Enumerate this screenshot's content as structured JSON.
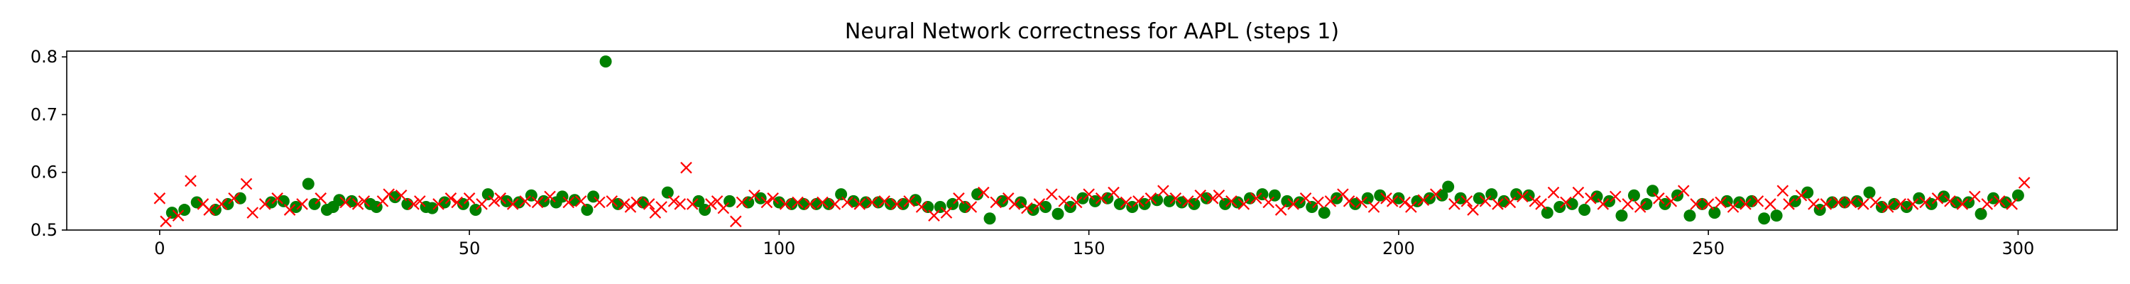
{
  "chart_data": {
    "type": "scatter",
    "title": "Neural Network correctness for AAPL (steps 1)",
    "xlabel": "",
    "ylabel": "",
    "xlim": [
      -15,
      316
    ],
    "ylim": [
      0.5,
      0.81
    ],
    "xticks": [
      0,
      50,
      100,
      150,
      200,
      250,
      300
    ],
    "yticks": [
      0.5,
      0.6,
      0.7,
      0.8
    ],
    "grid": false,
    "series": [
      {
        "marker": "circle",
        "color": "#008000",
        "points": [
          [
            2,
            0.53
          ],
          [
            4,
            0.535
          ],
          [
            6,
            0.548
          ],
          [
            9,
            0.535
          ],
          [
            11,
            0.545
          ],
          [
            13,
            0.555
          ],
          [
            18,
            0.548
          ],
          [
            20,
            0.55
          ],
          [
            22,
            0.54
          ],
          [
            24,
            0.58
          ],
          [
            25,
            0.545
          ],
          [
            27,
            0.535
          ],
          [
            28,
            0.54
          ],
          [
            29,
            0.552
          ],
          [
            31,
            0.55
          ],
          [
            34,
            0.545
          ],
          [
            35,
            0.54
          ],
          [
            38,
            0.557
          ],
          [
            40,
            0.545
          ],
          [
            43,
            0.54
          ],
          [
            44,
            0.538
          ],
          [
            46,
            0.548
          ],
          [
            49,
            0.545
          ],
          [
            51,
            0.535
          ],
          [
            53,
            0.562
          ],
          [
            56,
            0.55
          ],
          [
            58,
            0.548
          ],
          [
            60,
            0.56
          ],
          [
            62,
            0.55
          ],
          [
            64,
            0.548
          ],
          [
            65,
            0.558
          ],
          [
            67,
            0.552
          ],
          [
            69,
            0.535
          ],
          [
            70,
            0.558
          ],
          [
            72,
            0.792
          ],
          [
            74,
            0.545
          ],
          [
            78,
            0.548
          ],
          [
            82,
            0.565
          ],
          [
            87,
            0.55
          ],
          [
            88,
            0.535
          ],
          [
            92,
            0.55
          ],
          [
            95,
            0.548
          ],
          [
            97,
            0.555
          ],
          [
            100,
            0.548
          ],
          [
            102,
            0.545
          ],
          [
            104,
            0.545
          ],
          [
            106,
            0.545
          ],
          [
            108,
            0.545
          ],
          [
            110,
            0.562
          ],
          [
            112,
            0.55
          ],
          [
            114,
            0.548
          ],
          [
            116,
            0.548
          ],
          [
            118,
            0.545
          ],
          [
            120,
            0.545
          ],
          [
            122,
            0.552
          ],
          [
            124,
            0.54
          ],
          [
            126,
            0.54
          ],
          [
            128,
            0.545
          ],
          [
            130,
            0.54
          ],
          [
            132,
            0.562
          ],
          [
            134,
            0.52
          ],
          [
            136,
            0.55
          ],
          [
            139,
            0.548
          ],
          [
            141,
            0.535
          ],
          [
            143,
            0.54
          ],
          [
            145,
            0.528
          ],
          [
            147,
            0.54
          ],
          [
            149,
            0.555
          ],
          [
            151,
            0.55
          ],
          [
            153,
            0.555
          ],
          [
            155,
            0.545
          ],
          [
            157,
            0.54
          ],
          [
            159,
            0.545
          ],
          [
            161,
            0.552
          ],
          [
            163,
            0.55
          ],
          [
            165,
            0.548
          ],
          [
            167,
            0.545
          ],
          [
            169,
            0.555
          ],
          [
            172,
            0.545
          ],
          [
            174,
            0.548
          ],
          [
            176,
            0.555
          ],
          [
            178,
            0.562
          ],
          [
            180,
            0.56
          ],
          [
            182,
            0.55
          ],
          [
            184,
            0.548
          ],
          [
            186,
            0.54
          ],
          [
            188,
            0.53
          ],
          [
            190,
            0.555
          ],
          [
            193,
            0.545
          ],
          [
            195,
            0.555
          ],
          [
            197,
            0.56
          ],
          [
            200,
            0.555
          ],
          [
            203,
            0.55
          ],
          [
            205,
            0.555
          ],
          [
            207,
            0.56
          ],
          [
            208,
            0.575
          ],
          [
            210,
            0.555
          ],
          [
            213,
            0.555
          ],
          [
            215,
            0.562
          ],
          [
            217,
            0.55
          ],
          [
            219,
            0.562
          ],
          [
            221,
            0.56
          ],
          [
            224,
            0.53
          ],
          [
            226,
            0.54
          ],
          [
            228,
            0.545
          ],
          [
            230,
            0.535
          ],
          [
            232,
            0.558
          ],
          [
            234,
            0.55
          ],
          [
            236,
            0.525
          ],
          [
            238,
            0.56
          ],
          [
            240,
            0.545
          ],
          [
            241,
            0.568
          ],
          [
            243,
            0.545
          ],
          [
            245,
            0.56
          ],
          [
            247,
            0.525
          ],
          [
            249,
            0.545
          ],
          [
            251,
            0.53
          ],
          [
            253,
            0.55
          ],
          [
            255,
            0.548
          ],
          [
            257,
            0.55
          ],
          [
            259,
            0.52
          ],
          [
            261,
            0.525
          ],
          [
            264,
            0.55
          ],
          [
            266,
            0.565
          ],
          [
            268,
            0.535
          ],
          [
            270,
            0.548
          ],
          [
            272,
            0.548
          ],
          [
            274,
            0.55
          ],
          [
            276,
            0.565
          ],
          [
            278,
            0.54
          ],
          [
            280,
            0.545
          ],
          [
            282,
            0.54
          ],
          [
            284,
            0.555
          ],
          [
            286,
            0.545
          ],
          [
            288,
            0.558
          ],
          [
            290,
            0.548
          ],
          [
            292,
            0.548
          ],
          [
            294,
            0.528
          ],
          [
            296,
            0.555
          ],
          [
            298,
            0.548
          ],
          [
            300,
            0.56
          ]
        ]
      },
      {
        "marker": "x",
        "color": "#ff0000",
        "points": [
          [
            0,
            0.555
          ],
          [
            1,
            0.515
          ],
          [
            3,
            0.525
          ],
          [
            5,
            0.585
          ],
          [
            7,
            0.545
          ],
          [
            8,
            0.535
          ],
          [
            10,
            0.545
          ],
          [
            12,
            0.555
          ],
          [
            14,
            0.58
          ],
          [
            15,
            0.53
          ],
          [
            17,
            0.545
          ],
          [
            19,
            0.555
          ],
          [
            21,
            0.535
          ],
          [
            23,
            0.545
          ],
          [
            26,
            0.555
          ],
          [
            30,
            0.548
          ],
          [
            32,
            0.545
          ],
          [
            33,
            0.55
          ],
          [
            36,
            0.55
          ],
          [
            37,
            0.562
          ],
          [
            39,
            0.56
          ],
          [
            41,
            0.545
          ],
          [
            42,
            0.55
          ],
          [
            45,
            0.545
          ],
          [
            47,
            0.555
          ],
          [
            48,
            0.548
          ],
          [
            50,
            0.555
          ],
          [
            52,
            0.545
          ],
          [
            54,
            0.55
          ],
          [
            55,
            0.555
          ],
          [
            57,
            0.545
          ],
          [
            59,
            0.55
          ],
          [
            61,
            0.548
          ],
          [
            63,
            0.558
          ],
          [
            66,
            0.548
          ],
          [
            68,
            0.55
          ],
          [
            71,
            0.548
          ],
          [
            73,
            0.55
          ],
          [
            75,
            0.545
          ],
          [
            76,
            0.54
          ],
          [
            77,
            0.548
          ],
          [
            79,
            0.545
          ],
          [
            80,
            0.53
          ],
          [
            81,
            0.54
          ],
          [
            83,
            0.55
          ],
          [
            84,
            0.545
          ],
          [
            85,
            0.608
          ],
          [
            86,
            0.545
          ],
          [
            89,
            0.545
          ],
          [
            90,
            0.55
          ],
          [
            91,
            0.538
          ],
          [
            93,
            0.515
          ],
          [
            94,
            0.548
          ],
          [
            96,
            0.56
          ],
          [
            98,
            0.548
          ],
          [
            99,
            0.555
          ],
          [
            101,
            0.545
          ],
          [
            103,
            0.548
          ],
          [
            105,
            0.545
          ],
          [
            107,
            0.548
          ],
          [
            109,
            0.545
          ],
          [
            111,
            0.548
          ],
          [
            113,
            0.545
          ],
          [
            115,
            0.548
          ],
          [
            117,
            0.55
          ],
          [
            119,
            0.545
          ],
          [
            121,
            0.55
          ],
          [
            123,
            0.54
          ],
          [
            125,
            0.525
          ],
          [
            127,
            0.53
          ],
          [
            129,
            0.555
          ],
          [
            131,
            0.54
          ],
          [
            133,
            0.565
          ],
          [
            135,
            0.548
          ],
          [
            137,
            0.555
          ],
          [
            138,
            0.545
          ],
          [
            140,
            0.538
          ],
          [
            142,
            0.545
          ],
          [
            144,
            0.562
          ],
          [
            146,
            0.55
          ],
          [
            148,
            0.548
          ],
          [
            150,
            0.562
          ],
          [
            152,
            0.555
          ],
          [
            154,
            0.565
          ],
          [
            156,
            0.548
          ],
          [
            158,
            0.55
          ],
          [
            160,
            0.555
          ],
          [
            162,
            0.568
          ],
          [
            164,
            0.555
          ],
          [
            166,
            0.55
          ],
          [
            168,
            0.56
          ],
          [
            170,
            0.555
          ],
          [
            171,
            0.56
          ],
          [
            173,
            0.55
          ],
          [
            175,
            0.545
          ],
          [
            177,
            0.555
          ],
          [
            179,
            0.548
          ],
          [
            181,
            0.535
          ],
          [
            183,
            0.545
          ],
          [
            185,
            0.555
          ],
          [
            187,
            0.548
          ],
          [
            189,
            0.55
          ],
          [
            191,
            0.562
          ],
          [
            192,
            0.55
          ],
          [
            194,
            0.548
          ],
          [
            196,
            0.54
          ],
          [
            198,
            0.555
          ],
          [
            199,
            0.55
          ],
          [
            201,
            0.548
          ],
          [
            202,
            0.54
          ],
          [
            204,
            0.552
          ],
          [
            206,
            0.562
          ],
          [
            209,
            0.545
          ],
          [
            211,
            0.55
          ],
          [
            212,
            0.535
          ],
          [
            214,
            0.55
          ],
          [
            216,
            0.545
          ],
          [
            218,
            0.548
          ],
          [
            220,
            0.558
          ],
          [
            222,
            0.55
          ],
          [
            223,
            0.545
          ],
          [
            225,
            0.565
          ],
          [
            227,
            0.548
          ],
          [
            229,
            0.565
          ],
          [
            231,
            0.555
          ],
          [
            233,
            0.545
          ],
          [
            235,
            0.558
          ],
          [
            237,
            0.545
          ],
          [
            239,
            0.54
          ],
          [
            242,
            0.555
          ],
          [
            244,
            0.55
          ],
          [
            246,
            0.568
          ],
          [
            248,
            0.545
          ],
          [
            250,
            0.545
          ],
          [
            252,
            0.548
          ],
          [
            254,
            0.54
          ],
          [
            256,
            0.545
          ],
          [
            258,
            0.55
          ],
          [
            260,
            0.545
          ],
          [
            262,
            0.568
          ],
          [
            263,
            0.545
          ],
          [
            265,
            0.56
          ],
          [
            267,
            0.545
          ],
          [
            269,
            0.545
          ],
          [
            271,
            0.548
          ],
          [
            273,
            0.548
          ],
          [
            275,
            0.545
          ],
          [
            277,
            0.548
          ],
          [
            279,
            0.54
          ],
          [
            281,
            0.545
          ],
          [
            283,
            0.545
          ],
          [
            285,
            0.548
          ],
          [
            287,
            0.555
          ],
          [
            289,
            0.55
          ],
          [
            291,
            0.545
          ],
          [
            293,
            0.558
          ],
          [
            295,
            0.545
          ],
          [
            297,
            0.55
          ],
          [
            299,
            0.545
          ],
          [
            301,
            0.582
          ]
        ]
      }
    ]
  }
}
